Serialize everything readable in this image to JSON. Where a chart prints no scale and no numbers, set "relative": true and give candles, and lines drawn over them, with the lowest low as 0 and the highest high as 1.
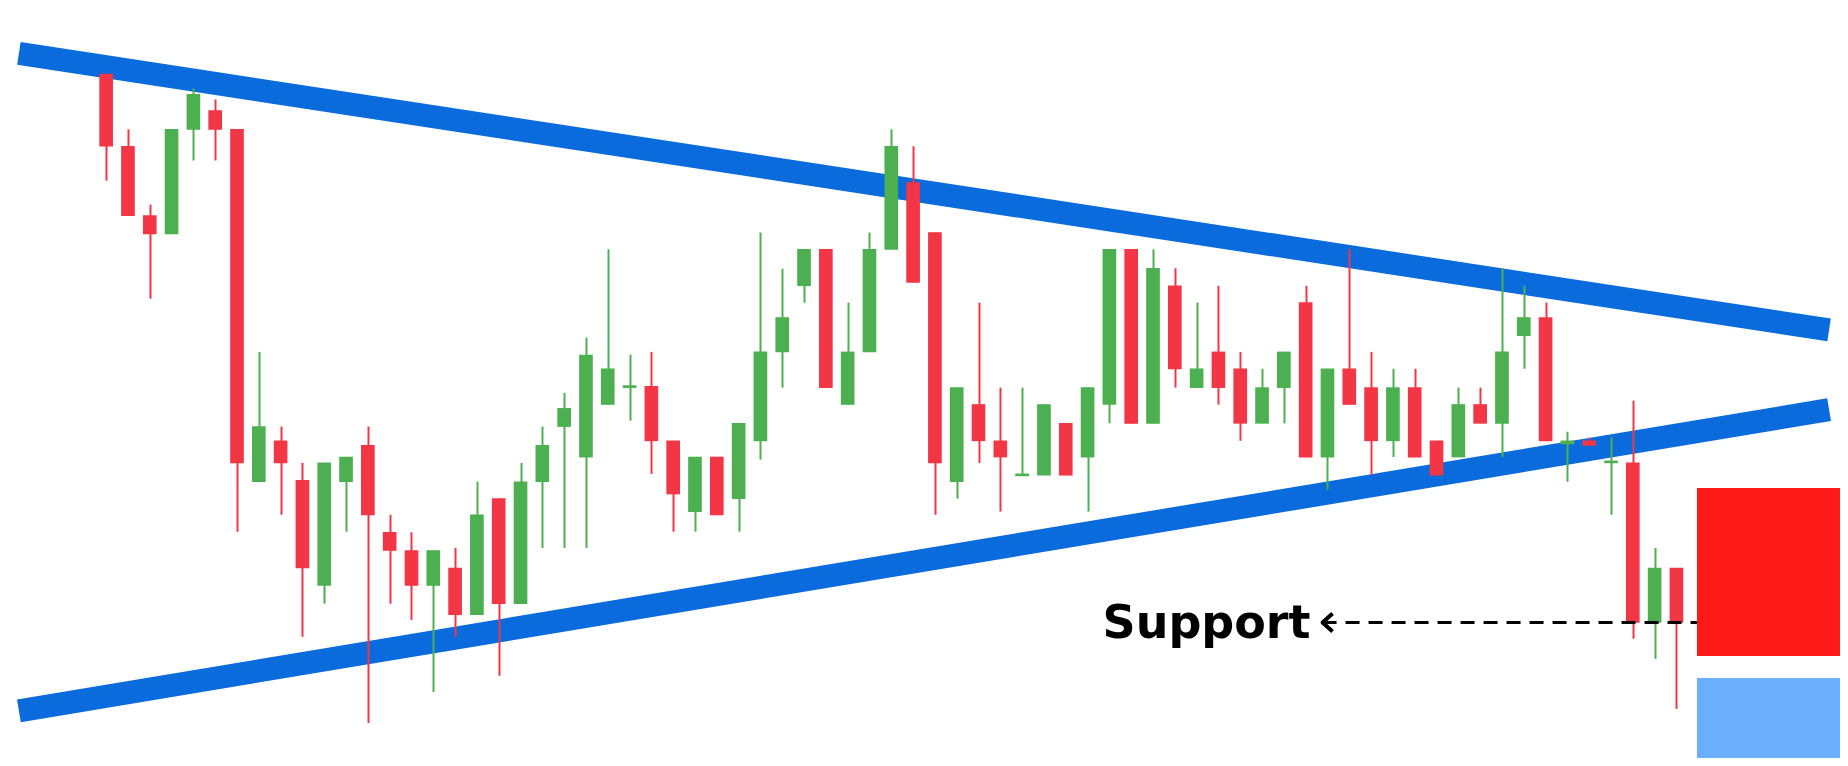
{
  "chart_data": {
    "type": "candlestick",
    "relative": true,
    "categories": [
      null,
      null,
      null,
      null,
      null,
      null,
      null,
      null,
      null,
      null,
      null,
      null,
      null,
      null,
      null,
      null,
      null,
      null,
      null,
      null,
      null,
      null,
      null,
      null,
      null,
      null,
      null,
      null,
      null,
      null,
      null,
      null,
      null,
      null,
      null,
      null,
      null,
      null,
      null,
      null,
      null,
      null,
      null,
      null,
      null,
      null,
      null,
      null,
      null,
      null,
      null,
      null,
      null,
      null,
      null,
      null,
      null,
      null,
      null,
      null,
      null,
      null,
      null,
      null,
      null,
      null,
      null,
      null,
      null,
      null,
      null,
      null,
      null,
      null,
      null,
      null,
      null,
      null,
      null,
      null,
      null,
      null,
      null,
      null
    ],
    "ohlc": [
      null,
      null,
      null,
      null,
      [
        1.0,
        1.0,
        0.836,
        0.889
      ],
      [
        0.889,
        0.915,
        0.782,
        0.782
      ],
      [
        0.782,
        0.799,
        0.654,
        0.754
      ],
      [
        0.754,
        0.915,
        0.754,
        0.915
      ],
      [
        0.915,
        0.978,
        0.867,
        0.969
      ],
      [
        0.944,
        0.961,
        0.867,
        0.915
      ],
      [
        0.915,
        0.915,
        0.295,
        0.401
      ],
      [
        0.372,
        0.572,
        0.372,
        0.457
      ],
      [
        0.435,
        0.457,
        0.321,
        0.401
      ],
      [
        0.374,
        0.401,
        0.133,
        0.239
      ],
      [
        0.212,
        0.401,
        0.184,
        0.401
      ],
      [
        0.372,
        0.41,
        0.295,
        0.41
      ],
      [
        0.428,
        0.457,
        0.0,
        0.321
      ],
      [
        0.294,
        0.321,
        0.184,
        0.266
      ],
      [
        0.266,
        0.294,
        0.159,
        0.212
      ],
      [
        0.212,
        0.266,
        0.048,
        0.266
      ],
      [
        0.239,
        0.27,
        0.133,
        0.167
      ],
      [
        0.167,
        0.372,
        0.167,
        0.321
      ],
      [
        0.346,
        0.346,
        0.073,
        0.184
      ],
      [
        0.184,
        0.401,
        0.184,
        0.372
      ],
      [
        0.372,
        0.457,
        0.27,
        0.428
      ],
      [
        0.457,
        0.509,
        0.27,
        0.485
      ],
      [
        0.41,
        0.594,
        0.27,
        0.567
      ],
      [
        0.491,
        0.73,
        0.491,
        0.546
      ],
      [
        0.517,
        0.568,
        0.466,
        0.519
      ],
      [
        0.519,
        0.572,
        0.384,
        0.435
      ],
      [
        0.435,
        0.435,
        0.295,
        0.353
      ],
      [
        0.326,
        0.41,
        0.295,
        0.41
      ],
      [
        0.41,
        0.41,
        0.321,
        0.321
      ],
      [
        0.346,
        0.462,
        0.295,
        0.462
      ],
      [
        0.435,
        0.756,
        0.406,
        0.572
      ],
      [
        0.572,
        0.7,
        0.517,
        0.625
      ],
      [
        0.674,
        0.73,
        0.648,
        0.73
      ],
      [
        0.73,
        0.73,
        0.517,
        0.517
      ],
      [
        0.491,
        0.648,
        0.491,
        0.572
      ],
      [
        0.572,
        0.756,
        0.572,
        0.73
      ],
      [
        0.73,
        0.915,
        0.73,
        0.889
      ],
      [
        0.833,
        0.889,
        0.679,
        0.679
      ],
      [
        0.756,
        0.756,
        0.321,
        0.401
      ],
      [
        0.372,
        0.517,
        0.346,
        0.517
      ],
      [
        0.491,
        0.648,
        0.401,
        0.435
      ],
      [
        0.435,
        0.517,
        0.326,
        0.41
      ],
      [
        0.381,
        0.517,
        0.381,
        0.382
      ],
      [
        0.382,
        0.491,
        0.382,
        0.491
      ],
      [
        0.462,
        0.462,
        0.382,
        0.382
      ],
      [
        0.41,
        0.517,
        0.326,
        0.517
      ],
      [
        0.491,
        0.73,
        0.462,
        0.73
      ],
      [
        0.73,
        0.73,
        0.462,
        0.462
      ],
      [
        0.462,
        0.73,
        0.462,
        0.701
      ],
      [
        0.674,
        0.701,
        0.517,
        0.546
      ],
      [
        0.517,
        0.648,
        0.517,
        0.546
      ],
      [
        0.572,
        0.674,
        0.491,
        0.517
      ],
      [
        0.546,
        0.572,
        0.435,
        0.462
      ],
      [
        0.462,
        0.546,
        0.462,
        0.517
      ],
      [
        0.517,
        0.572,
        0.462,
        0.572
      ],
      [
        0.648,
        0.674,
        0.41,
        0.41
      ],
      [
        0.41,
        0.546,
        0.36,
        0.546
      ],
      [
        0.546,
        0.73,
        0.491,
        0.491
      ],
      [
        0.517,
        0.572,
        0.382,
        0.435
      ],
      [
        0.435,
        0.546,
        0.41,
        0.517
      ],
      [
        0.517,
        0.546,
        0.41,
        0.41
      ],
      [
        0.435,
        0.435,
        0.382,
        0.382
      ],
      [
        0.41,
        0.517,
        0.41,
        0.491
      ],
      [
        0.491,
        0.517,
        0.462,
        0.462
      ],
      [
        0.462,
        0.701,
        0.41,
        0.572
      ],
      [
        0.597,
        0.674,
        0.546,
        0.625
      ],
      [
        0.625,
        0.648,
        0.435,
        0.435
      ],
      [
        0.43,
        0.449,
        0.372,
        0.435
      ],
      [
        0.435,
        0.44,
        0.427,
        0.428
      ],
      [
        0.401,
        0.44,
        0.321,
        0.403
      ],
      [
        0.401,
        0.497,
        0.13,
        0.155
      ],
      [
        0.155,
        0.27,
        0.099,
        0.239
      ],
      [
        0.239,
        0.239,
        0.022,
        0.155
      ],
      null,
      null,
      null,
      null,
      null,
      null,
      null
    ],
    "series": [
      {
        "type": "line",
        "color": "#0a6cdc",
        "values": [
          1.032,
          null,
          null,
          null,
          null,
          null,
          null,
          null,
          null,
          null,
          null,
          null,
          null,
          null,
          null,
          null,
          null,
          null,
          null,
          null,
          null,
          null,
          null,
          null,
          null,
          null,
          null,
          null,
          null,
          null,
          null,
          null,
          null,
          null,
          null,
          null,
          null,
          null,
          null,
          null,
          null,
          null,
          null,
          null,
          null,
          null,
          null,
          null,
          null,
          null,
          null,
          null,
          null,
          null,
          null,
          null,
          null,
          null,
          null,
          null,
          null,
          null,
          null,
          null,
          null,
          null,
          null,
          null,
          null,
          null,
          null,
          null,
          null,
          null,
          null,
          null,
          null,
          null,
          null,
          null,
          null,
          null,
          null,
          0.606
        ]
      },
      {
        "type": "line",
        "color": "#0a6cdc",
        "values": [
          0.019,
          null,
          null,
          null,
          null,
          null,
          null,
          null,
          null,
          null,
          null,
          null,
          null,
          null,
          null,
          null,
          null,
          null,
          null,
          null,
          null,
          null,
          null,
          null,
          null,
          null,
          null,
          null,
          null,
          null,
          null,
          null,
          null,
          null,
          null,
          null,
          null,
          null,
          null,
          null,
          null,
          null,
          null,
          null,
          null,
          null,
          null,
          null,
          null,
          null,
          null,
          null,
          null,
          null,
          null,
          null,
          null,
          null,
          null,
          null,
          null,
          null,
          null,
          null,
          null,
          null,
          null,
          null,
          null,
          null,
          null,
          null,
          null,
          null,
          null,
          null,
          null,
          null,
          null,
          null,
          null,
          null,
          null,
          0.483
        ]
      }
    ],
    "ref_lines": [
      {
        "axis": "y",
        "value": 0.155,
        "label": "Support",
        "color": "#000000",
        "line_style": "dashed"
      }
    ]
  }
}
